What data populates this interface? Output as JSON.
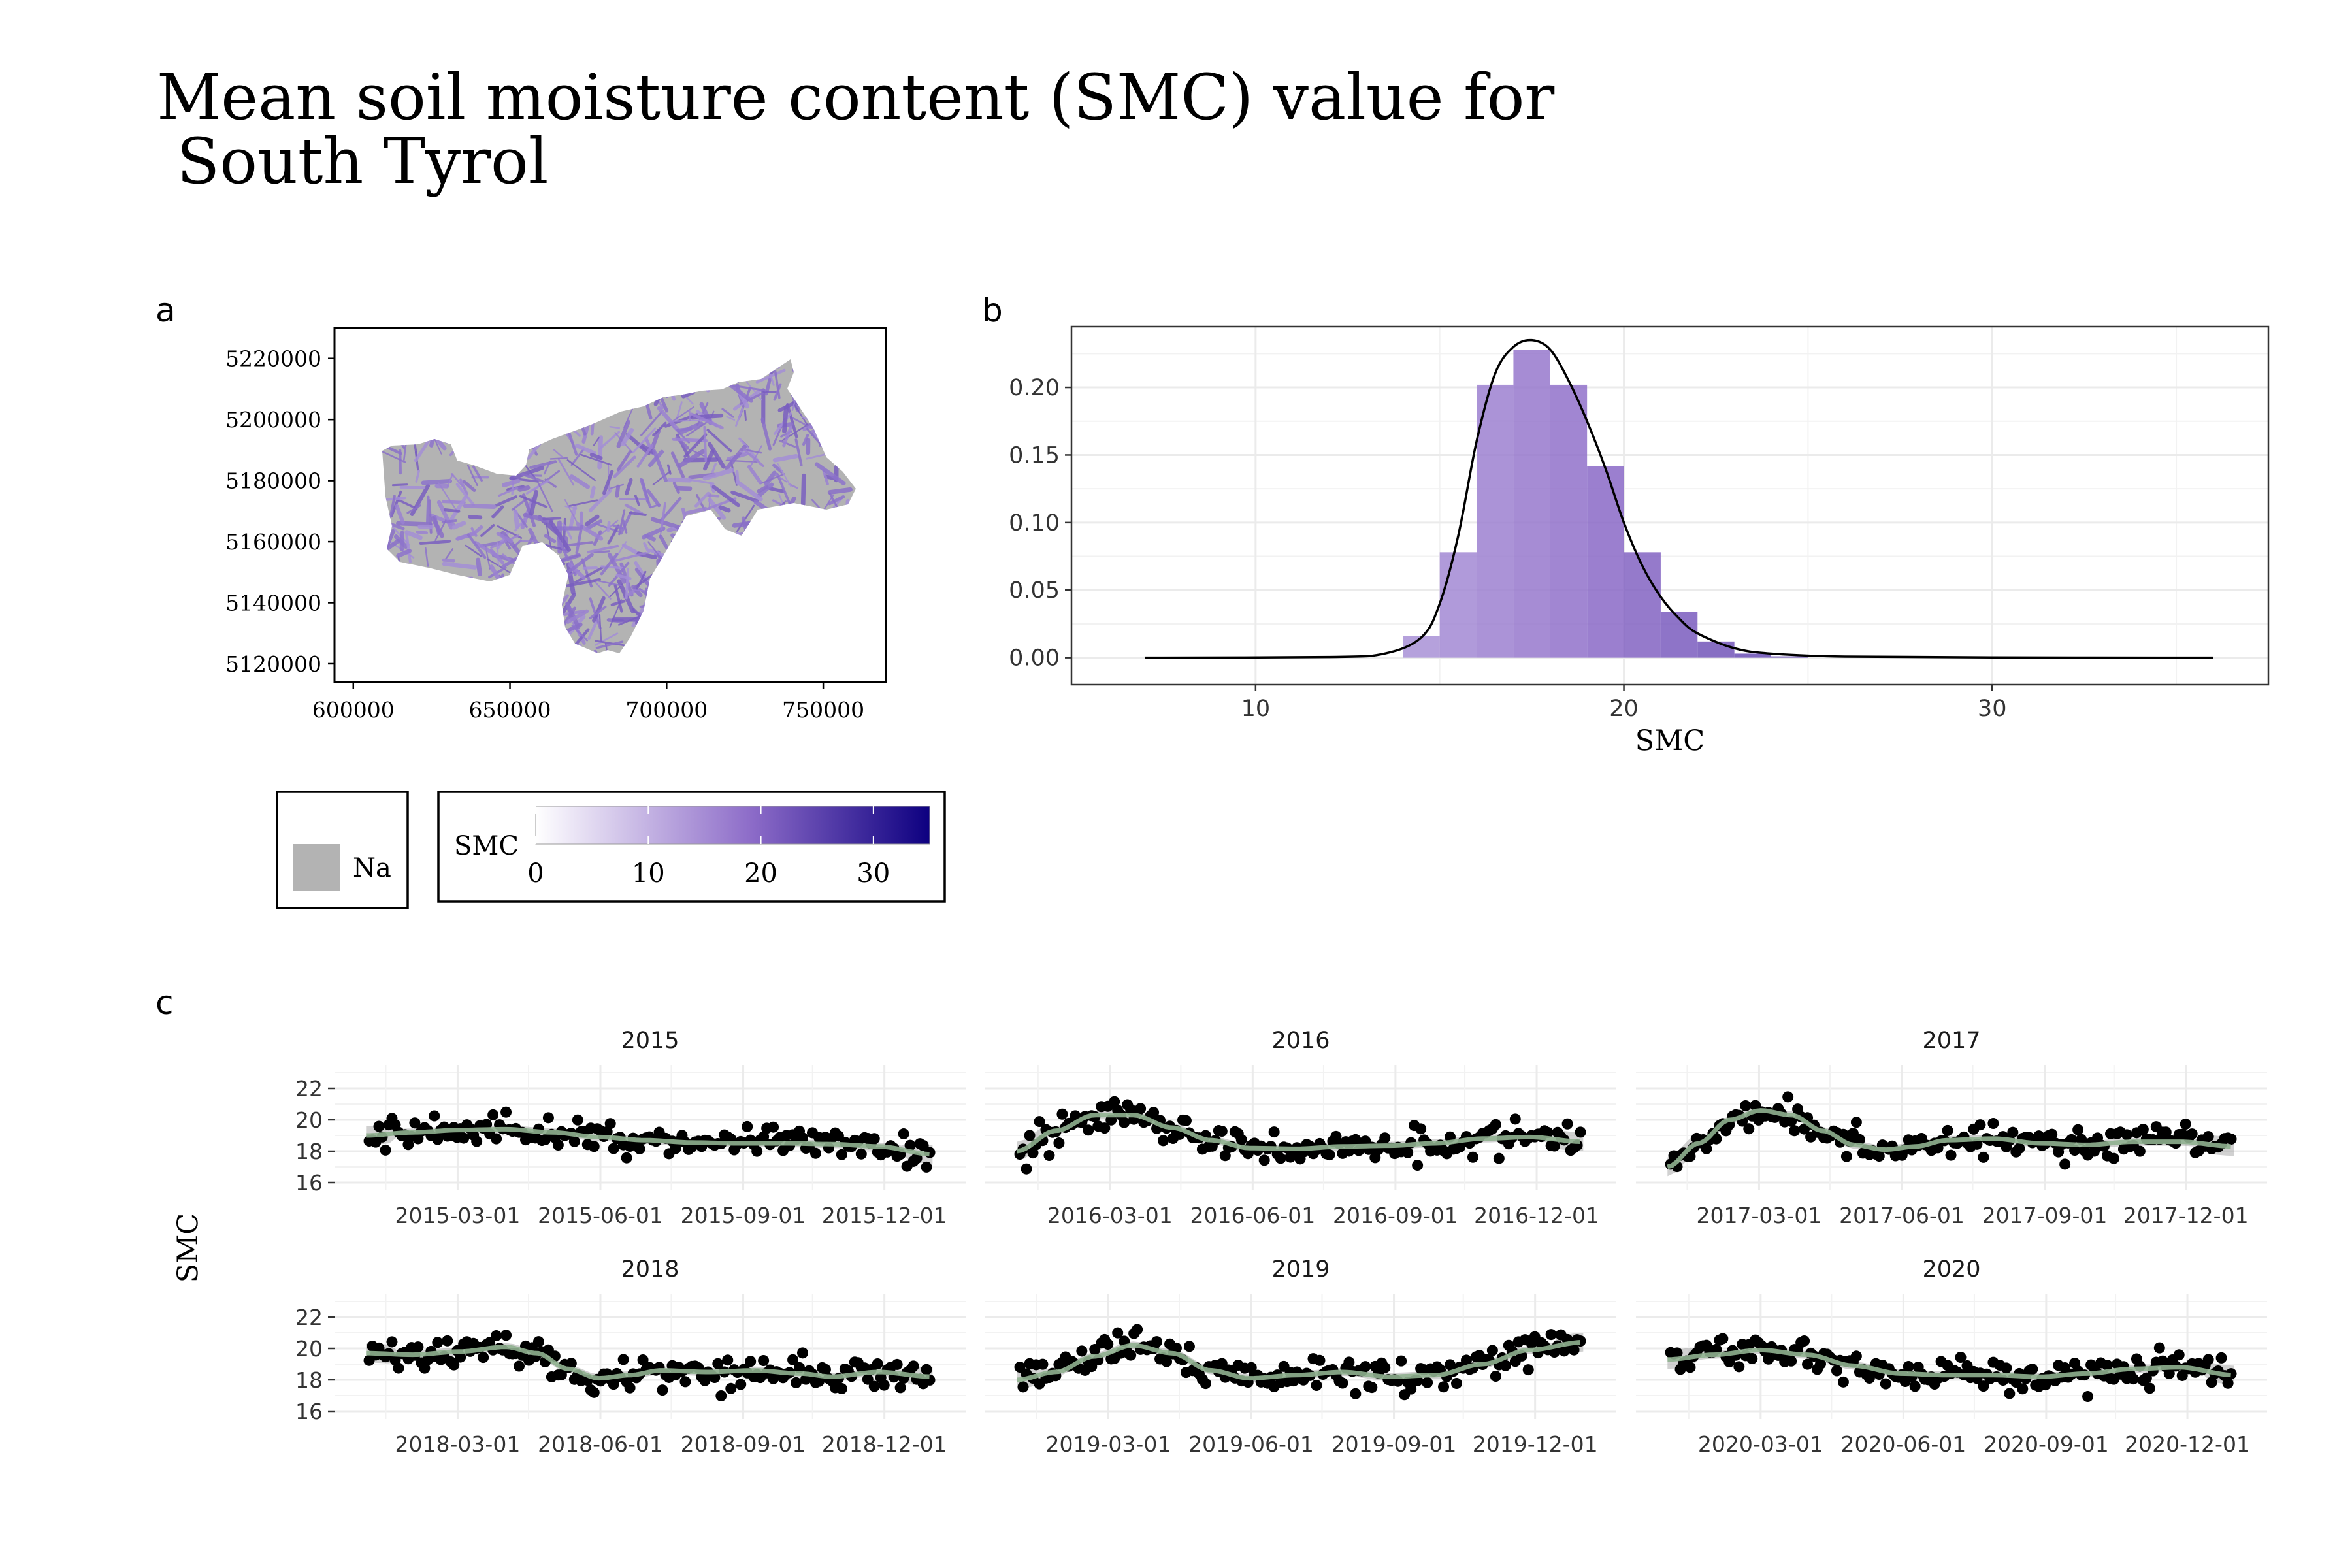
{
  "title_line1": "Mean soil moisture content (SMC) value for",
  "title_line2": " South Tyrol",
  "panel_labels": {
    "a": "a",
    "b": "b",
    "c": "c"
  },
  "colors": {
    "low": "#ffffff",
    "mid": "#8c6bc8",
    "high": "#0d0080",
    "na": "#b3b3b3",
    "smooth": "#8fb08f",
    "points": "#000000",
    "density": "#000000"
  },
  "legend": {
    "na_label": "Na",
    "smc_title": "SMC",
    "smc_breaks": [
      "0",
      "10",
      "20",
      "30"
    ],
    "smc_range": [
      0,
      35
    ]
  },
  "chart_data": [
    {
      "type": "map",
      "panel": "a",
      "x_ticks": [
        "600000",
        "650000",
        "700000",
        "750000"
      ],
      "y_ticks": [
        "5120000",
        "5140000",
        "5160000",
        "5180000",
        "5200000",
        "5220000"
      ],
      "xlim": [
        594000,
        770000
      ],
      "ylim": [
        5114000,
        5230000
      ],
      "fill": "SMC",
      "na_fill": "Na"
    },
    {
      "type": "bar",
      "panel": "b",
      "xlabel": "SMC",
      "ylabel": "",
      "xlim": [
        5,
        37.5
      ],
      "ylim": [
        -0.02,
        0.245
      ],
      "x_ticks": [
        10,
        20,
        30
      ],
      "y_ticks": [
        "0.00",
        "0.05",
        "0.10",
        "0.15",
        "0.20"
      ],
      "bin_width": 1,
      "bins": [
        {
          "x": 14.5,
          "density": 0.016
        },
        {
          "x": 15.5,
          "density": 0.078
        },
        {
          "x": 16.5,
          "density": 0.202
        },
        {
          "x": 17.5,
          "density": 0.228
        },
        {
          "x": 18.5,
          "density": 0.202
        },
        {
          "x": 19.5,
          "density": 0.142
        },
        {
          "x": 20.5,
          "density": 0.078
        },
        {
          "x": 21.5,
          "density": 0.034
        },
        {
          "x": 22.5,
          "density": 0.012
        },
        {
          "x": 23.5,
          "density": 0.003
        },
        {
          "x": 24.5,
          "density": 0.001
        }
      ],
      "density_curve": [
        {
          "x": 7,
          "y": 0
        },
        {
          "x": 12,
          "y": 0.0005
        },
        {
          "x": 13.5,
          "y": 0.003
        },
        {
          "x": 14.5,
          "y": 0.015
        },
        {
          "x": 15,
          "y": 0.04
        },
        {
          "x": 15.5,
          "y": 0.09
        },
        {
          "x": 16,
          "y": 0.16
        },
        {
          "x": 16.5,
          "y": 0.21
        },
        {
          "x": 17,
          "y": 0.23
        },
        {
          "x": 17.5,
          "y": 0.235
        },
        {
          "x": 18,
          "y": 0.228
        },
        {
          "x": 18.5,
          "y": 0.205
        },
        {
          "x": 19,
          "y": 0.175
        },
        {
          "x": 19.5,
          "y": 0.14
        },
        {
          "x": 20,
          "y": 0.1
        },
        {
          "x": 20.5,
          "y": 0.068
        },
        {
          "x": 21,
          "y": 0.045
        },
        {
          "x": 21.5,
          "y": 0.029
        },
        {
          "x": 22,
          "y": 0.018
        },
        {
          "x": 23,
          "y": 0.007
        },
        {
          "x": 24,
          "y": 0.003
        },
        {
          "x": 26,
          "y": 0.0008
        },
        {
          "x": 30,
          "y": 0.0002
        },
        {
          "x": 36,
          "y": 0
        }
      ]
    },
    {
      "type": "scatter",
      "panel": "c",
      "ylabel": "SMC",
      "ylim": [
        15.5,
        23.5
      ],
      "y_ticks": [
        16,
        18,
        20,
        22
      ],
      "facets": [
        {
          "label": "2015",
          "year": 2015,
          "x_ticks": [
            "2015-03-01",
            "2015-06-01",
            "2015-09-01",
            "2015-12-01"
          ],
          "smooth": [
            [
              0,
              19.0
            ],
            [
              30,
              19.2
            ],
            [
              60,
              19.35
            ],
            [
              90,
              19.4
            ],
            [
              120,
              19.2
            ],
            [
              150,
              18.9
            ],
            [
              180,
              18.7
            ],
            [
              210,
              18.55
            ],
            [
              240,
              18.5
            ],
            [
              270,
              18.5
            ],
            [
              300,
              18.45
            ],
            [
              330,
              18.3
            ],
            [
              365,
              17.8
            ]
          ]
        },
        {
          "label": "2016",
          "year": 2016,
          "x_ticks": [
            "2016-03-01",
            "2016-06-01",
            "2016-09-01",
            "2016-12-01"
          ],
          "smooth": [
            [
              0,
              18.0
            ],
            [
              25,
              19.3
            ],
            [
              50,
              20.3
            ],
            [
              75,
              20.3
            ],
            [
              100,
              19.5
            ],
            [
              125,
              18.7
            ],
            [
              150,
              18.2
            ],
            [
              180,
              18.15
            ],
            [
              210,
              18.3
            ],
            [
              240,
              18.35
            ],
            [
              270,
              18.5
            ],
            [
              300,
              18.8
            ],
            [
              330,
              18.9
            ],
            [
              365,
              18.6
            ]
          ]
        },
        {
          "label": "2017",
          "year": 2017,
          "x_ticks": [
            "2017-03-01",
            "2017-06-01",
            "2017-09-01",
            "2017-12-01"
          ],
          "smooth": [
            [
              0,
              17.0
            ],
            [
              20,
              18.5
            ],
            [
              40,
              20.0
            ],
            [
              60,
              20.6
            ],
            [
              80,
              20.3
            ],
            [
              100,
              19.3
            ],
            [
              120,
              18.4
            ],
            [
              140,
              18.1
            ],
            [
              160,
              18.3
            ],
            [
              180,
              18.7
            ],
            [
              210,
              18.8
            ],
            [
              240,
              18.5
            ],
            [
              270,
              18.4
            ],
            [
              300,
              18.6
            ],
            [
              330,
              18.6
            ],
            [
              365,
              18.3
            ]
          ]
        },
        {
          "label": "2018",
          "year": 2018,
          "x_ticks": [
            "2018-03-01",
            "2018-06-01",
            "2018-09-01",
            "2018-12-01"
          ],
          "smooth": [
            [
              0,
              19.7
            ],
            [
              30,
              19.6
            ],
            [
              60,
              19.8
            ],
            [
              90,
              20.1
            ],
            [
              110,
              19.7
            ],
            [
              130,
              18.7
            ],
            [
              150,
              18.1
            ],
            [
              170,
              18.3
            ],
            [
              190,
              18.6
            ],
            [
              220,
              18.5
            ],
            [
              250,
              18.6
            ],
            [
              280,
              18.4
            ],
            [
              300,
              18.2
            ],
            [
              330,
              18.5
            ],
            [
              365,
              18.2
            ]
          ]
        },
        {
          "label": "2019",
          "year": 2019,
          "x_ticks": [
            "2019-03-01",
            "2019-06-01",
            "2019-09-01",
            "2019-12-01"
          ],
          "smooth": [
            [
              0,
              18.0
            ],
            [
              25,
              18.5
            ],
            [
              50,
              19.5
            ],
            [
              75,
              20.2
            ],
            [
              100,
              19.7
            ],
            [
              125,
              18.6
            ],
            [
              150,
              18.1
            ],
            [
              180,
              18.3
            ],
            [
              210,
              18.5
            ],
            [
              240,
              18.2
            ],
            [
              270,
              18.3
            ],
            [
              300,
              19.0
            ],
            [
              330,
              19.9
            ],
            [
              365,
              20.4
            ]
          ]
        },
        {
          "label": "2020",
          "year": 2020,
          "x_ticks": [
            "2020-03-01",
            "2020-06-01",
            "2020-09-01",
            "2020-12-01"
          ],
          "smooth": [
            [
              0,
              19.3
            ],
            [
              30,
              19.6
            ],
            [
              60,
              19.9
            ],
            [
              90,
              19.6
            ],
            [
              120,
              18.9
            ],
            [
              150,
              18.4
            ],
            [
              180,
              18.3
            ],
            [
              210,
              18.3
            ],
            [
              240,
              18.2
            ],
            [
              270,
              18.4
            ],
            [
              300,
              18.7
            ],
            [
              330,
              18.8
            ],
            [
              365,
              18.3
            ]
          ]
        }
      ]
    }
  ]
}
